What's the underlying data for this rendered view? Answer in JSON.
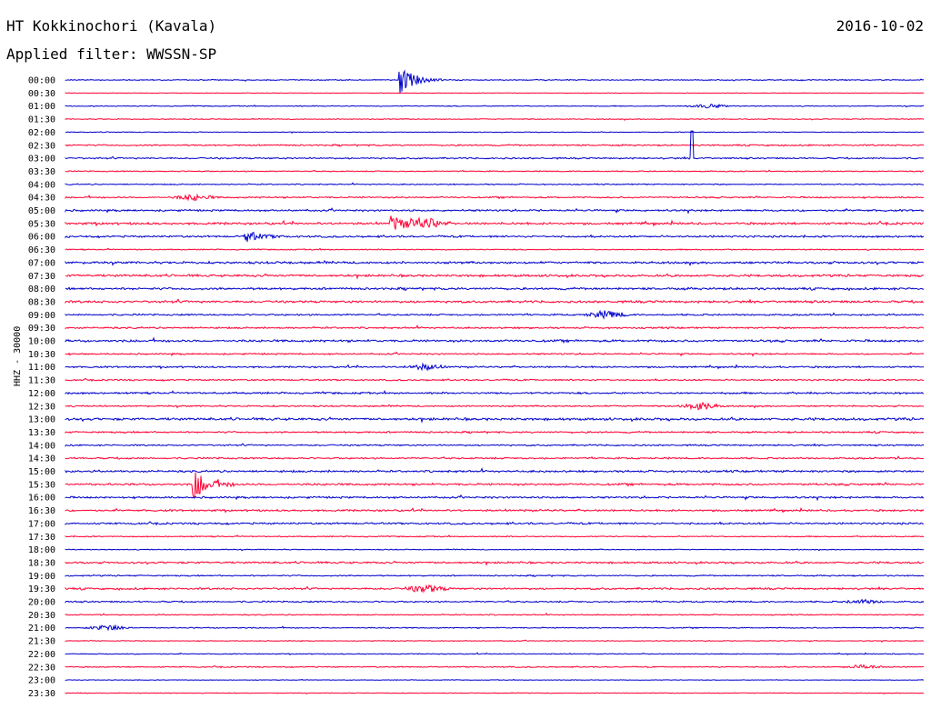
{
  "header": {
    "station": "HT Kokkinochori (Kavala)",
    "date": "2016-10-02",
    "filter": "Applied filter: WWSSN-SP"
  },
  "channel_label": "HHZ - 30000",
  "colors": {
    "even_rows": "#0000cc",
    "odd_rows": "#ff0033"
  },
  "chart_data": {
    "type": "line",
    "title": "HT Kokkinochori (Kavala)",
    "subtitle": "Applied filter: WWSSN-SP",
    "ylabel": "HHZ - 30000",
    "xlabel": "",
    "grid": false,
    "categories": [
      "00:00",
      "00:30",
      "01:00",
      "01:30",
      "02:00",
      "02:30",
      "03:00",
      "03:30",
      "04:00",
      "04:30",
      "05:00",
      "05:30",
      "06:00",
      "06:30",
      "07:00",
      "07:30",
      "08:00",
      "08:30",
      "09:00",
      "09:30",
      "10:00",
      "10:30",
      "11:00",
      "11:30",
      "12:00",
      "12:30",
      "13:00",
      "13:30",
      "14:00",
      "14:30",
      "15:00",
      "15:30",
      "16:00",
      "16:30",
      "17:00",
      "17:30",
      "18:00",
      "18:30",
      "19:00",
      "19:30",
      "20:00",
      "20:30",
      "21:00",
      "21:30",
      "22:00",
      "22:30",
      "23:00",
      "23:30"
    ],
    "noise_level": [
      0.5,
      0.3,
      0.5,
      0.5,
      0.4,
      0.8,
      0.8,
      0.6,
      0.6,
      0.8,
      1.0,
      1.2,
      1.0,
      0.6,
      1.2,
      1.2,
      1.2,
      1.2,
      0.9,
      0.9,
      1.2,
      0.8,
      0.9,
      0.8,
      1.0,
      0.8,
      1.3,
      0.9,
      0.8,
      0.9,
      1.1,
      1.1,
      1.0,
      1.0,
      1.0,
      0.6,
      0.5,
      1.0,
      0.7,
      1.0,
      0.8,
      0.6,
      0.6,
      0.4,
      0.5,
      0.6,
      0.3,
      0.4
    ],
    "events": [
      {
        "row": "00:00",
        "x": 0.39,
        "amplitude": 15,
        "kind": "spike"
      },
      {
        "row": "01:00",
        "x": 0.75,
        "amplitude": 2,
        "kind": "burst"
      },
      {
        "row": "03:00",
        "x": 0.73,
        "amplitude": 30,
        "kind": "glitch"
      },
      {
        "row": "04:30",
        "x": 0.15,
        "amplitude": 3,
        "kind": "burst"
      },
      {
        "row": "05:30",
        "x": 0.38,
        "amplitude": 8,
        "kind": "spike"
      },
      {
        "row": "05:30",
        "x": 0.42,
        "amplitude": 5,
        "kind": "burst"
      },
      {
        "row": "06:00",
        "x": 0.21,
        "amplitude": 6,
        "kind": "spike"
      },
      {
        "row": "09:00",
        "x": 0.63,
        "amplitude": 4,
        "kind": "burst"
      },
      {
        "row": "11:00",
        "x": 0.42,
        "amplitude": 3,
        "kind": "burst"
      },
      {
        "row": "12:30",
        "x": 0.74,
        "amplitude": 4,
        "kind": "burst"
      },
      {
        "row": "15:30",
        "x": 0.15,
        "amplitude": 16,
        "kind": "spike"
      },
      {
        "row": "19:30",
        "x": 0.42,
        "amplitude": 4,
        "kind": "burst"
      },
      {
        "row": "20:00",
        "x": 0.93,
        "amplitude": 2,
        "kind": "burst"
      },
      {
        "row": "21:00",
        "x": 0.05,
        "amplitude": 3,
        "kind": "burst"
      },
      {
        "row": "22:30",
        "x": 0.93,
        "amplitude": 2,
        "kind": "burst"
      }
    ]
  }
}
